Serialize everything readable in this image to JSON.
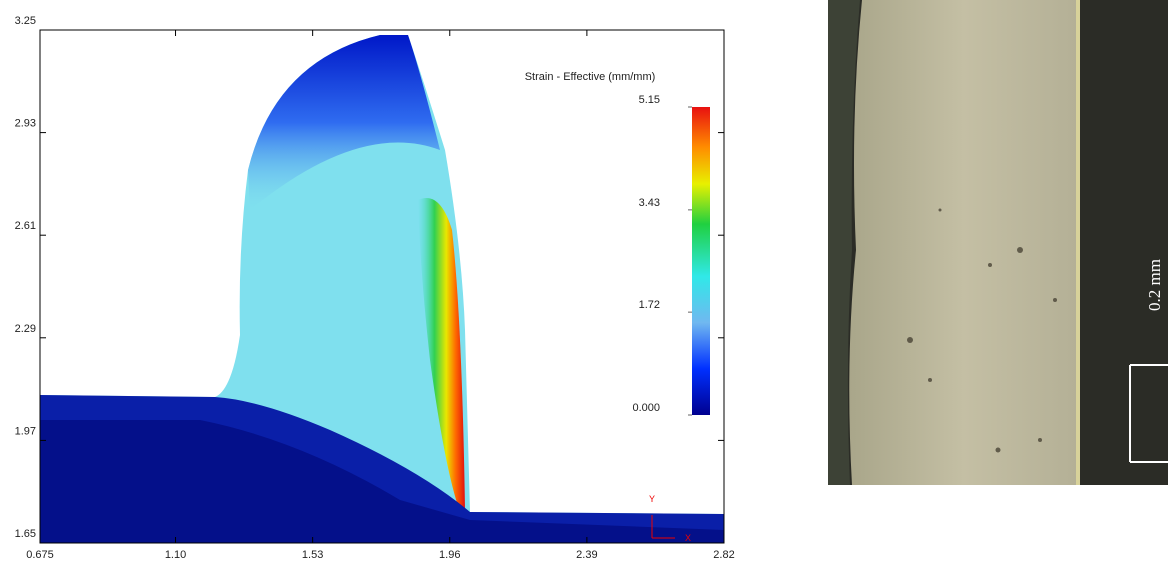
{
  "chart_data": {
    "type": "contour",
    "xlim": [
      0.675,
      2.82
    ],
    "xticks": [
      0.675,
      {
        "value": 1.1,
        "label": "1.10"
      },
      1.53,
      1.96,
      2.39,
      2.82
    ],
    "ylim": [
      1.65,
      3.25
    ],
    "yticks": [
      1.65,
      1.97,
      2.29,
      2.61,
      2.93,
      3.25
    ],
    "x_axis_label": "X",
    "y_axis_label": "Y",
    "colorbar": {
      "title": "Strain - Effective (mm/mm)",
      "lim": [
        0,
        5.15
      ],
      "ticks": [
        {
          "value": 0,
          "label": "0.000"
        },
        1.72,
        3.43,
        5.15
      ]
    }
  },
  "micrograph": {
    "scale_label": "0.2 mm"
  }
}
